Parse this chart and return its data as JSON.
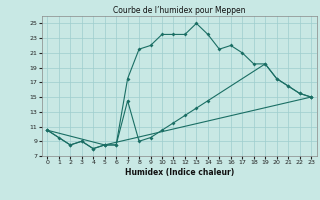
{
  "title": "Courbe de l’humidex pour Meppen",
  "xlabel": "Humidex (Indice chaleur)",
  "xlim": [
    -0.5,
    23.5
  ],
  "ylim": [
    7,
    26
  ],
  "xticks": [
    0,
    1,
    2,
    3,
    4,
    5,
    6,
    7,
    8,
    9,
    10,
    11,
    12,
    13,
    14,
    15,
    16,
    17,
    18,
    19,
    20,
    21,
    22,
    23
  ],
  "yticks": [
    7,
    9,
    11,
    13,
    15,
    17,
    19,
    21,
    23,
    25
  ],
  "background_color": "#c8e8e4",
  "grid_color": "#9ecece",
  "line_color": "#1a6e64",
  "line1_x": [
    0,
    1,
    2,
    3,
    4,
    5,
    6,
    7,
    8,
    9,
    10,
    11,
    12,
    13,
    14,
    15,
    16,
    17,
    18,
    19,
    20,
    21,
    22,
    23
  ],
  "line1_y": [
    10.5,
    9.5,
    8.5,
    9.0,
    8.0,
    8.5,
    8.5,
    17.5,
    21.5,
    22.0,
    23.5,
    23.5,
    23.5,
    25.0,
    23.5,
    21.5,
    22.0,
    21.0,
    19.5,
    19.5,
    17.5,
    16.5,
    15.5,
    15.0
  ],
  "line2_x": [
    0,
    2,
    3,
    4,
    5,
    6,
    7,
    8,
    9,
    10,
    11,
    12,
    13,
    14,
    19,
    20,
    21,
    22,
    23
  ],
  "line2_y": [
    10.5,
    8.5,
    9.0,
    8.0,
    8.5,
    8.5,
    14.5,
    9.0,
    9.5,
    10.5,
    11.5,
    12.5,
    13.5,
    14.5,
    19.5,
    17.5,
    16.5,
    15.5,
    15.0
  ],
  "line3_x": [
    0,
    5,
    23
  ],
  "line3_y": [
    10.5,
    8.5,
    15.0
  ]
}
